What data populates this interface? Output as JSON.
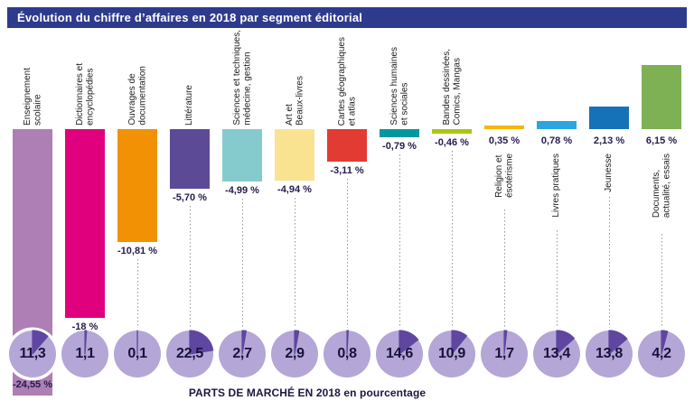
{
  "title": "Évolution du chiffre d’affaires en 2018 par segment éditorial",
  "caption": "PARTS DE MARCHÉ EN 2018 en pourcentage",
  "colors": {
    "title_bg": "#2e3b8d",
    "title_text": "#ffffff",
    "pie_base": "#b4a6d6",
    "pie_wedge": "#5f46a0",
    "value_text": "#241b4e",
    "label_text": "#1d1d1b",
    "share_text": "#18123a",
    "caption_text": "#1c1740",
    "leader_dots": "#969696"
  },
  "chart_data": {
    "type": "bar",
    "title": "Évolution du chiffre d’affaires en 2018 par segment éditorial",
    "unit": "%",
    "ylabel": "Évolution du chiffre d’affaires (%)",
    "secondary": "Parts de marché en 2018 en pourcentage (camemberts)",
    "segments": [
      {
        "label_lines": [
          "Enseignement",
          "scolaire"
        ],
        "change_label": "-24,55 %",
        "change_pct": -24.55,
        "share_label": "11,3",
        "share_pct": 11.3,
        "color": "#ad7fb4",
        "bar_truncated": true
      },
      {
        "label_lines": [
          "Dictionnaires et",
          "encyclopédies"
        ],
        "change_label": "-18 %",
        "change_pct": -18,
        "share_label": "1,1",
        "share_pct": 1.1,
        "color": "#e0007e",
        "bar_truncated": false
      },
      {
        "label_lines": [
          "Ouvrages de",
          "documentation"
        ],
        "change_label": "-10,81 %",
        "change_pct": -10.81,
        "share_label": "0,1",
        "share_pct": 0.1,
        "color": "#f29104",
        "bar_truncated": false
      },
      {
        "label_lines": [
          "Littérature"
        ],
        "change_label": "-5,70 %",
        "change_pct": -5.7,
        "share_label": "22,5",
        "share_pct": 22.5,
        "color": "#5c4a96",
        "bar_truncated": false
      },
      {
        "label_lines": [
          "Sciences et techniques,",
          "médecine, gestion"
        ],
        "change_label": "-4,99 %",
        "change_pct": -4.99,
        "share_label": "2,7",
        "share_pct": 2.7,
        "color": "#85cbcd",
        "bar_truncated": false
      },
      {
        "label_lines": [
          "Art et",
          "Beaux-livres"
        ],
        "change_label": "-4,94 %",
        "change_pct": -4.94,
        "share_label": "2,9",
        "share_pct": 2.9,
        "color": "#fae390",
        "bar_truncated": false
      },
      {
        "label_lines": [
          "Cartes géographiques",
          "et atlas"
        ],
        "change_label": "-3,11 %",
        "change_pct": -3.11,
        "share_label": "0,8",
        "share_pct": 0.8,
        "color": "#e23b34",
        "bar_truncated": false
      },
      {
        "label_lines": [
          "Sciences humaines",
          "et sociales"
        ],
        "change_label": "-0,79 %",
        "change_pct": -0.79,
        "share_label": "14,6",
        "share_pct": 14.6,
        "color": "#00999d",
        "bar_truncated": false
      },
      {
        "label_lines": [
          "Bandes dessinées,",
          "Comics, Mangas"
        ],
        "change_label": "-0,46 %",
        "change_pct": -0.46,
        "share_label": "10,9",
        "share_pct": 10.9,
        "color": "#a9c712",
        "bar_truncated": false
      },
      {
        "label_lines": [
          "Religion et",
          "ésotérisme"
        ],
        "change_label": "0,35 %",
        "change_pct": 0.35,
        "share_label": "1,7",
        "share_pct": 1.7,
        "color": "#f4b60b",
        "bar_truncated": false
      },
      {
        "label_lines": [
          "Livres pratiques"
        ],
        "change_label": "0,78 %",
        "change_pct": 0.78,
        "share_label": "13,4",
        "share_pct": 13.4,
        "color": "#2ca6e0",
        "bar_truncated": false
      },
      {
        "label_lines": [
          "Jeunesse"
        ],
        "change_label": "2,13 %",
        "change_pct": 2.13,
        "share_label": "13,8",
        "share_pct": 13.8,
        "color": "#1572b9",
        "bar_truncated": false
      },
      {
        "label_lines": [
          "Documents,",
          "actualité, essais"
        ],
        "change_label": "6,15 %",
        "change_pct": 6.15,
        "share_label": "4,2",
        "share_pct": 4.2,
        "color": "#7eb054",
        "bar_truncated": false
      }
    ]
  }
}
